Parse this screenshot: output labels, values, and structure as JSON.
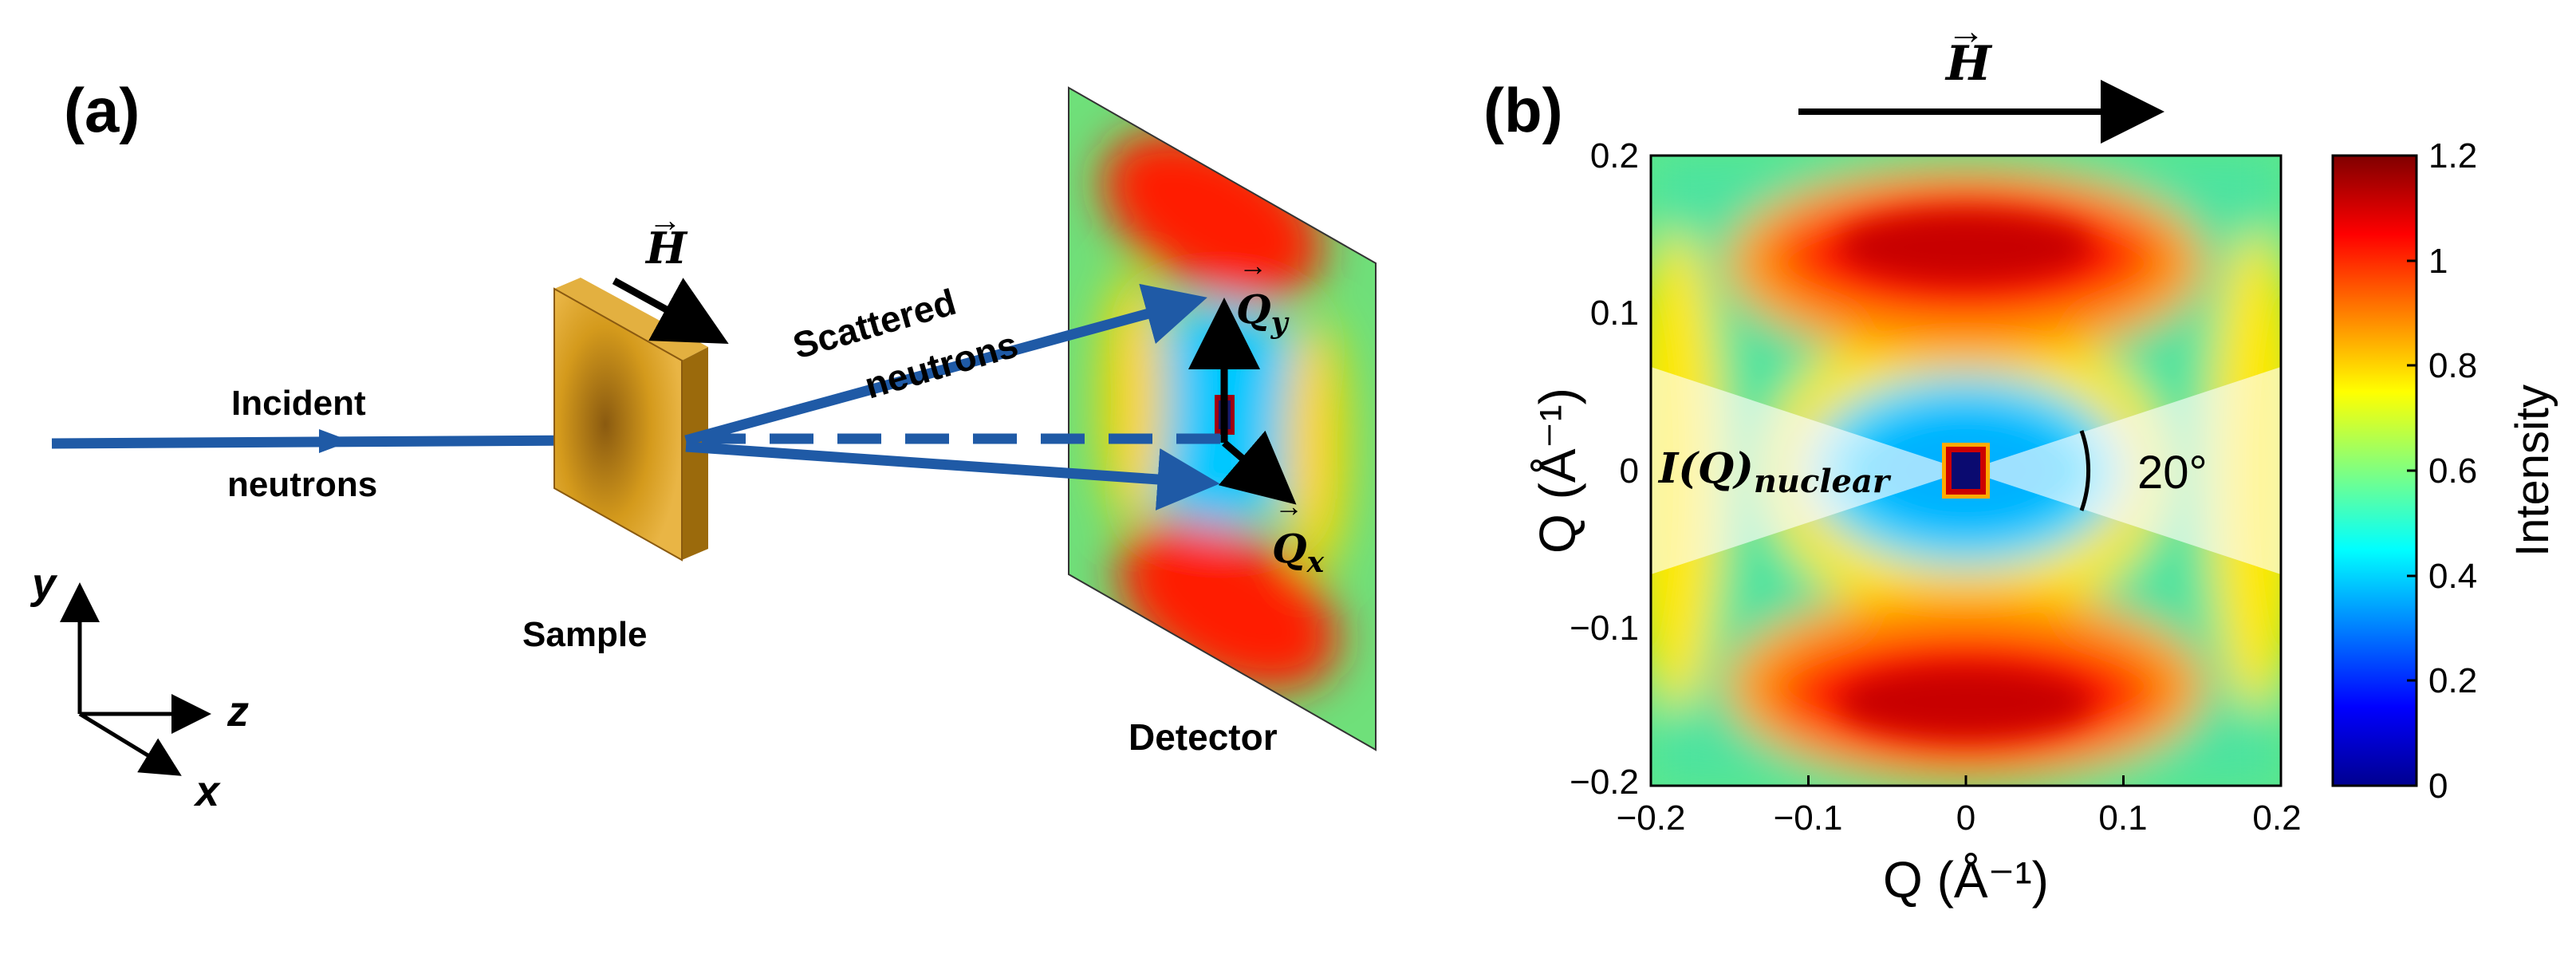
{
  "panel_a": {
    "label": "(a)",
    "field_label": "H",
    "incident_line1": "Incident",
    "incident_line2": "neutrons",
    "scattered_line1": "Scattered",
    "scattered_line2": "neutrons",
    "sample_label": "Sample",
    "detector_label": "Detector",
    "qy_main": "Q",
    "qy_sub": "y",
    "qx_main": "Q",
    "qx_sub": "x",
    "axis_y": "y",
    "axis_z": "z",
    "axis_x": "x"
  },
  "panel_b": {
    "label": "(b)",
    "field_label": "H",
    "x_axis_label": "Q (Å⁻¹)",
    "y_axis_label": "Q (Å⁻¹)",
    "x_ticks": [
      "−0.2",
      "−0.1",
      "0",
      "0.1",
      "0.2"
    ],
    "y_ticks": [
      "0.2",
      "0.1",
      "0",
      "−0.1",
      "−0.2"
    ],
    "annotation_main": "I(Q)",
    "annotation_sub": "nuclear",
    "angle_label": "20°",
    "colorbar_label": "Intensity",
    "colorbar_ticks": [
      "1.2",
      "1",
      "0.8",
      "0.6",
      "0.4",
      "0.2",
      "0"
    ],
    "colors": {
      "beam": "#1f5aa6",
      "sample": "#c8900a",
      "colormap": [
        "#00008f",
        "#0000ff",
        "#0080ff",
        "#00ffff",
        "#80ff80",
        "#ffff00",
        "#ff8000",
        "#ff0000",
        "#800000"
      ]
    }
  }
}
